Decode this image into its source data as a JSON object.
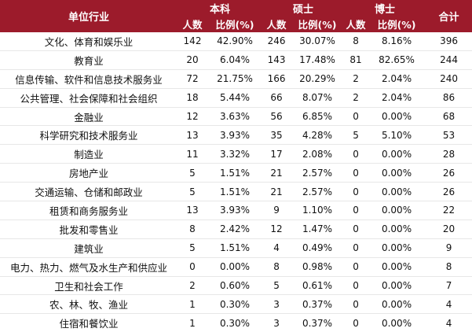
{
  "header": {
    "industry": "单位行业",
    "bachelor": "本科",
    "master": "硕士",
    "doctor": "博士",
    "total": "合计",
    "count": "人数",
    "ratio": "比例(%)"
  },
  "rows": [
    {
      "industry": "文化、体育和娱乐业",
      "b_n": "142",
      "b_p": "42.90%",
      "m_n": "246",
      "m_p": "30.07%",
      "d_n": "8",
      "d_p": "8.16%",
      "total": "396"
    },
    {
      "industry": "教育业",
      "b_n": "20",
      "b_p": "6.04%",
      "m_n": "143",
      "m_p": "17.48%",
      "d_n": "81",
      "d_p": "82.65%",
      "total": "244"
    },
    {
      "industry": "信息传输、软件和信息技术服务业",
      "b_n": "72",
      "b_p": "21.75%",
      "m_n": "166",
      "m_p": "20.29%",
      "d_n": "2",
      "d_p": "2.04%",
      "total": "240"
    },
    {
      "industry": "公共管理、社会保障和社会组织",
      "b_n": "18",
      "b_p": "5.44%",
      "m_n": "66",
      "m_p": "8.07%",
      "d_n": "2",
      "d_p": "2.04%",
      "total": "86"
    },
    {
      "industry": "金融业",
      "b_n": "12",
      "b_p": "3.63%",
      "m_n": "56",
      "m_p": "6.85%",
      "d_n": "0",
      "d_p": "0.00%",
      "total": "68"
    },
    {
      "industry": "科学研究和技术服务业",
      "b_n": "13",
      "b_p": "3.93%",
      "m_n": "35",
      "m_p": "4.28%",
      "d_n": "5",
      "d_p": "5.10%",
      "total": "53"
    },
    {
      "industry": "制造业",
      "b_n": "11",
      "b_p": "3.32%",
      "m_n": "17",
      "m_p": "2.08%",
      "d_n": "0",
      "d_p": "0.00%",
      "total": "28"
    },
    {
      "industry": "房地产业",
      "b_n": "5",
      "b_p": "1.51%",
      "m_n": "21",
      "m_p": "2.57%",
      "d_n": "0",
      "d_p": "0.00%",
      "total": "26"
    },
    {
      "industry": "交通运输、仓储和邮政业",
      "b_n": "5",
      "b_p": "1.51%",
      "m_n": "21",
      "m_p": "2.57%",
      "d_n": "0",
      "d_p": "0.00%",
      "total": "26"
    },
    {
      "industry": "租赁和商务服务业",
      "b_n": "13",
      "b_p": "3.93%",
      "m_n": "9",
      "m_p": "1.10%",
      "d_n": "0",
      "d_p": "0.00%",
      "total": "22"
    },
    {
      "industry": "批发和零售业",
      "b_n": "8",
      "b_p": "2.42%",
      "m_n": "12",
      "m_p": "1.47%",
      "d_n": "0",
      "d_p": "0.00%",
      "total": "20"
    },
    {
      "industry": "建筑业",
      "b_n": "5",
      "b_p": "1.51%",
      "m_n": "4",
      "m_p": "0.49%",
      "d_n": "0",
      "d_p": "0.00%",
      "total": "9"
    },
    {
      "industry": "电力、热力、燃气及水生产和供应业",
      "b_n": "0",
      "b_p": "0.00%",
      "m_n": "8",
      "m_p": "0.98%",
      "d_n": "0",
      "d_p": "0.00%",
      "total": "8"
    },
    {
      "industry": "卫生和社会工作",
      "b_n": "2",
      "b_p": "0.60%",
      "m_n": "5",
      "m_p": "0.61%",
      "d_n": "0",
      "d_p": "0.00%",
      "total": "7"
    },
    {
      "industry": "农、林、牧、渔业",
      "b_n": "1",
      "b_p": "0.30%",
      "m_n": "3",
      "m_p": "0.37%",
      "d_n": "0",
      "d_p": "0.00%",
      "total": "4"
    },
    {
      "industry": "住宿和餐饮业",
      "b_n": "1",
      "b_p": "0.30%",
      "m_n": "3",
      "m_p": "0.37%",
      "d_n": "0",
      "d_p": "0.00%",
      "total": "4"
    }
  ],
  "colors": {
    "header_bg": "#9c1b2b",
    "header_text": "#ffffff",
    "row_rule": "#e7e7e7"
  }
}
